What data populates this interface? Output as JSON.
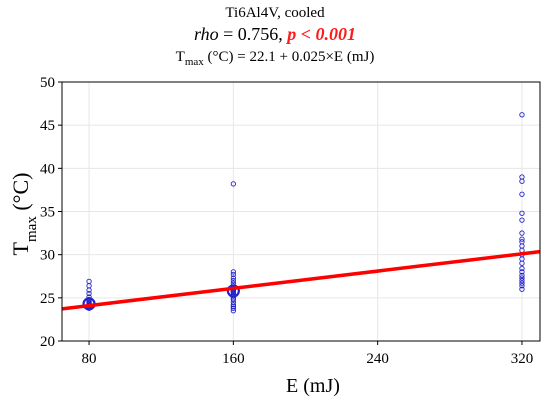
{
  "header": {
    "line1": "Ti6Al4V, cooled",
    "rho_label": "rho",
    "rho_value": " = 0.756,  ",
    "p_text": "p < 0.001",
    "eq_T": "T",
    "eq_sub": "max",
    "eq_rest": " (°C) = 22.1 + 0.025×E (mJ)"
  },
  "chart_data": {
    "type": "scatter",
    "title": "Ti6Al4V, cooled",
    "xlabel": "E (mJ)",
    "ylabel_main": "T",
    "ylabel_sub": "max",
    "ylabel_unit": " (°C)",
    "xlim": [
      65,
      330
    ],
    "ylim": [
      20,
      50
    ],
    "xticks": [
      80,
      160,
      240,
      320
    ],
    "yticks": [
      20,
      25,
      30,
      35,
      40,
      45,
      50
    ],
    "grid": true,
    "regression": {
      "intercept": 22.1,
      "slope": 0.025,
      "color": "#ff0000"
    },
    "point_color": "#2222cc",
    "series": [
      {
        "points": [
          [
            80,
            26.9
          ],
          [
            80,
            26.4
          ],
          [
            80,
            25.9
          ],
          [
            80,
            25.5
          ],
          [
            80,
            25.1
          ],
          [
            80,
            24.8
          ],
          [
            80,
            24.6
          ],
          [
            80,
            24.4
          ],
          [
            80,
            24.3
          ],
          [
            80,
            24.2
          ],
          [
            80,
            24.1
          ],
          [
            80,
            24.0
          ],
          [
            80,
            23.9
          ],
          [
            80,
            23.8
          ],
          [
            80,
            24.5
          ],
          [
            80,
            24.3
          ],
          [
            160,
            38.2
          ],
          [
            160,
            28.0
          ],
          [
            160,
            27.7
          ],
          [
            160,
            27.3
          ],
          [
            160,
            27.0
          ],
          [
            160,
            26.7
          ],
          [
            160,
            26.4
          ],
          [
            160,
            26.1
          ],
          [
            160,
            25.9
          ],
          [
            160,
            25.7
          ],
          [
            160,
            25.6
          ],
          [
            160,
            25.4
          ],
          [
            160,
            25.2
          ],
          [
            160,
            25.0
          ],
          [
            160,
            24.8
          ],
          [
            160,
            24.5
          ],
          [
            160,
            24.2
          ],
          [
            160,
            24.0
          ],
          [
            160,
            23.8
          ],
          [
            160,
            23.5
          ],
          [
            160,
            25.8
          ],
          [
            160,
            26.0
          ],
          [
            320,
            46.2
          ],
          [
            320,
            39.0
          ],
          [
            320,
            38.5
          ],
          [
            320,
            37.0
          ],
          [
            320,
            34.8
          ],
          [
            320,
            34.0
          ],
          [
            320,
            32.5
          ],
          [
            320,
            31.8
          ],
          [
            320,
            31.5
          ],
          [
            320,
            31.0
          ],
          [
            320,
            30.5
          ],
          [
            320,
            30.0
          ],
          [
            320,
            29.5
          ],
          [
            320,
            29.0
          ],
          [
            320,
            28.4
          ],
          [
            320,
            28.0
          ],
          [
            320,
            27.6
          ],
          [
            320,
            27.3
          ],
          [
            320,
            27.0
          ],
          [
            320,
            26.7
          ],
          [
            320,
            26.4
          ],
          [
            320,
            26.0
          ]
        ]
      }
    ]
  }
}
